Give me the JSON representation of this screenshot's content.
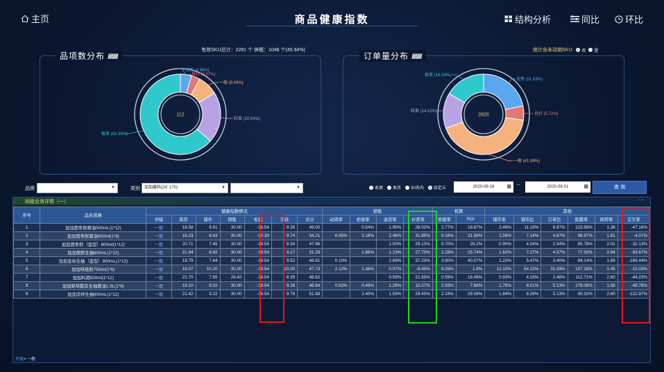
{
  "header": {
    "home": "主页",
    "title": "商品健康指数",
    "nav": [
      "结构分析",
      "同比",
      "环比"
    ]
  },
  "summary": "有效SKU总计：2281 个  休眠：1048 个(45.94%)",
  "left_panel": {
    "title": "品项数分布",
    "slashes": "////////",
    "center": "112",
    "segments": [
      {
        "label": "优秀 (4.46%)",
        "value": 4.46,
        "color": "#5aa6ef"
      },
      {
        "label": "良好 (3.57%)",
        "value": 3.57,
        "color": "#e07878"
      },
      {
        "label": "一般 (8.04%)",
        "value": 8.04,
        "color": "#f6b27c"
      },
      {
        "label": "较差 (20.54%)",
        "value": 20.54,
        "color": "#b7a3e3"
      },
      {
        "label": "极差 (63.39%)",
        "value": 63.39,
        "color": "#2fc8cc"
      }
    ]
  },
  "right_panel": {
    "title": "订单量分布",
    "slashes": "////////",
    "center": "2825",
    "toggle_label": "统计含未动销SKU:",
    "toggle_yes": "否",
    "toggle_no": "是",
    "segments": [
      {
        "label": "优秀 (21.63%)",
        "value": 21.63,
        "color": "#5aa6ef"
      },
      {
        "label": "良好 (5.72%)",
        "value": 5.72,
        "color": "#e07878"
      },
      {
        "label": "一般 (41.99%)",
        "value": 41.99,
        "color": "#f6b27c"
      },
      {
        "label": "较差 (14.32%)",
        "value": 14.32,
        "color": "#b7a3e3"
      },
      {
        "label": "极差 (16.34%)",
        "value": 16.34,
        "color": "#2fc8cc"
      }
    ]
  },
  "filters": {
    "brand_label": "品牌",
    "brand_value": "",
    "category_label": "类别",
    "category_value": "加加酱料(24: 170)",
    "sub_value": "",
    "periods": [
      "本周",
      "本月",
      "30天内",
      "自定义"
    ],
    "period_selected": 3,
    "date_from": "2020-08-18",
    "date_to": "2020-09-01",
    "query": "查 询"
  },
  "table": {
    "section_title": "同级业务详情（一）",
    "more": "···",
    "group_headers": [
      "健康指数情况",
      "销售",
      "核算",
      "其他"
    ],
    "seq_header": "序号",
    "name_header": "品名规格",
    "sub_headers": [
      "评级",
      "库存",
      "铺市",
      "销售",
      "毛利",
      "活跃",
      "合计",
      "动销率",
      "拒收率",
      "退货率",
      "价差率",
      "贡献率",
      "ROI",
      "铺市率",
      "铺市比",
      "订单比",
      "售罄率",
      "周转率",
      "交叉率"
    ],
    "rows": [
      [
        "1",
        "加加面条鲜酱油500mL(1*12)",
        "一般",
        "18.58",
        "9.61",
        "30.00",
        "-18.54",
        "9.35",
        "49.00",
        "",
        "0.54%",
        "1.99%",
        "26.02%",
        "2.77%",
        "18.87%",
        "2.49%",
        "11.18%",
        "6.87%",
        "123.98%",
        "1.38",
        "-47.16%"
      ],
      [
        "2",
        "加加面条鲜酱油650ml(1*9)",
        "一般",
        "16.23",
        "8.63",
        "30.00",
        "-10.39",
        "9.74",
        "54.21",
        "6.95%",
        "3.18%",
        "2.46%",
        "31.85%",
        "0.16%",
        "31.58%",
        "1.59%",
        "7.14%",
        "4.67%",
        "98.97%",
        "1.81",
        "-4.07%"
      ],
      [
        "3",
        "加加面条鲜（壶型）800ml(1*12)",
        "一般",
        "20.71",
        "7.45",
        "30.00",
        "-18.54",
        "8.34",
        "47.96",
        "",
        "",
        "1.00%",
        "29.13%",
        "0.70%",
        "28.2%",
        "0.90%",
        "4.04%",
        "2.34%",
        "85.78%",
        "2.01",
        "-32.13%"
      ],
      [
        "4",
        "加加原鲜生抽800mL(1*12)",
        "一般",
        "21.84",
        "8.82",
        "30.00",
        "-18.54",
        "9.17",
        "51.29",
        "",
        "1.86%",
        "1.23%",
        "27.70%",
        "1.29%",
        "25.74%",
        "1.62%",
        "7.27%",
        "4.57%",
        "77.32%",
        "2.94",
        "-93.67%"
      ],
      [
        "5",
        "加加金标生抽（壶型）800mL(1*12)",
        "一般",
        "19.79",
        "7.84",
        "30.00",
        "-18.54",
        "9.52",
        "48.61",
        "0.10%",
        "",
        "2.89%",
        "37.23%",
        "3.90%",
        "40.07%",
        "1.22%",
        "5.47%",
        "3.40%",
        "94.14%",
        "1.89",
        "-169.44%"
      ],
      [
        "6",
        "加加味极鲜750ml(1*6)",
        "一般",
        "16.07",
        "10.20",
        "30.00",
        "-18.54",
        "10.00",
        "47.73",
        "2.12%",
        "1.36%",
        "0.07%",
        "-8.45%",
        "6.09%",
        "1.8%",
        "12.10%",
        "54.22%",
        "31.93%",
        "107.18%",
        "1.45",
        "-15.03%"
      ],
      [
        "7",
        "加加料酒500ml(1*12)",
        "一般",
        "21.70",
        "7.65",
        "29.42",
        "-18.54",
        "8.39",
        "48.62",
        "",
        "",
        "0.59%",
        "21.65%",
        "0.59%",
        "18.46%",
        "0.93%",
        "4.16%",
        "2.48%",
        "112.71%",
        "2.80",
        "-44.23%"
      ],
      [
        "8",
        "加加蚝味甑房生抽酱油1.9L(1*6)",
        "一般",
        "19.10",
        "9.02",
        "30.00",
        "-18.54",
        "9.26",
        "48.84",
        "0.92%",
        "0.49%",
        "1.26%",
        "15.07%",
        "2.93%",
        "7.66%",
        "1.79%",
        "8.01%",
        "5.13%",
        "178.08%",
        "1.98",
        "-49.78%"
      ],
      [
        "9",
        "加加凉拌生抽800mL(1*12)",
        "一般",
        "21.42",
        "9.22",
        "30.00",
        "-18.54",
        "9.78",
        "51.88",
        "",
        "2.40%",
        "1.59%",
        "29.40%",
        "2.19%",
        "29.08%",
        "1.84%",
        "8.26%",
        "5.13%",
        "90.32%",
        "2.60",
        "-122.97%"
      ]
    ]
  },
  "footer": {
    "link": "评级",
    "rest": "> 一般"
  }
}
